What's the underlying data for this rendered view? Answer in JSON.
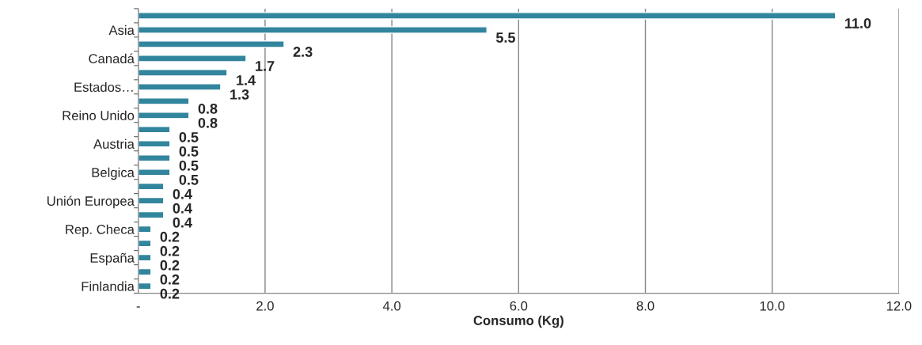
{
  "chart_data": {
    "type": "bar",
    "orientation": "horizontal",
    "xlabel": "Consumo (Kg)",
    "categories": [
      null,
      "Asia",
      null,
      "Canadá",
      null,
      "Estados…",
      null,
      "Reino Unido",
      null,
      "Austria",
      null,
      "Belgica",
      null,
      "Unión Europea",
      null,
      "Rep. Checa",
      null,
      "España",
      null,
      "Finlandia"
    ],
    "values": [
      11.0,
      5.5,
      2.3,
      1.7,
      1.4,
      1.3,
      0.8,
      0.8,
      0.5,
      0.5,
      0.5,
      0.5,
      0.4,
      0.4,
      0.4,
      0.2,
      0.2,
      0.2,
      0.2,
      0.2
    ],
    "value_labels": [
      "11.0",
      "5.5",
      "2.3",
      "1.7",
      "1.4",
      "1.3",
      "0.8",
      "0.8",
      "0.5",
      "0.5",
      "0.5",
      "0.5",
      "0.4",
      "0.4",
      "0.4",
      "0.2",
      "0.2",
      "0.2",
      "0.2",
      "0.2"
    ],
    "color": "#31859c",
    "xlim": [
      0,
      12
    ],
    "xticks": [
      {
        "value": 0,
        "label": "-"
      },
      {
        "value": 2,
        "label": "2.0"
      },
      {
        "value": 4,
        "label": "4.0"
      },
      {
        "value": 6,
        "label": "6.0"
      },
      {
        "value": 8,
        "label": "8.0"
      },
      {
        "value": 10,
        "label": "10.0"
      },
      {
        "value": 12,
        "label": "12.0"
      }
    ],
    "grid": "x",
    "legend": false
  }
}
